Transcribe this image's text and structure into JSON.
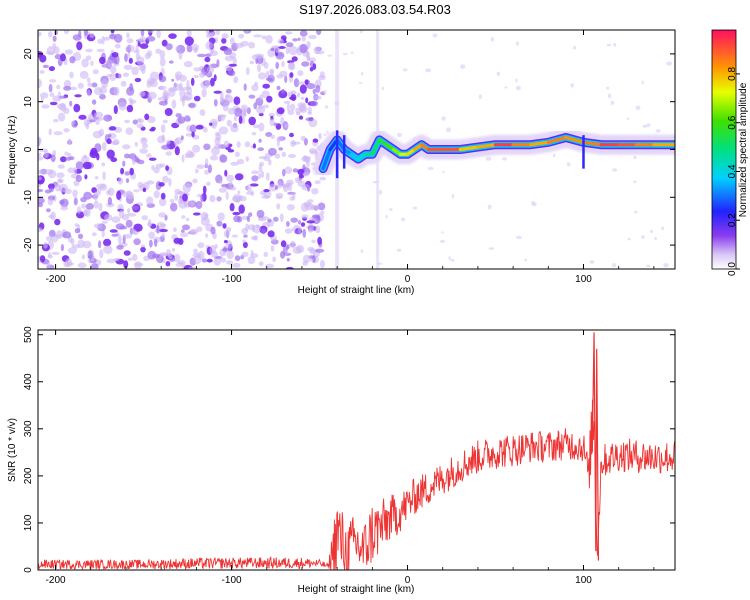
{
  "title": "S197.2026.083.03.54.R03",
  "chart_data": [
    {
      "type": "heatmap",
      "xlabel": "Height of straight line (km)",
      "ylabel": "Frequency (Hz)",
      "xlim": [
        -210,
        152
      ],
      "ylim": [
        -25,
        25
      ],
      "x_ticks": [
        -200,
        -100,
        0,
        100
      ],
      "y_ticks": [
        -20,
        -10,
        0,
        10,
        20
      ],
      "colorbar": {
        "label": "Normalized spectral amplitude",
        "range": [
          0,
          0.98
        ],
        "ticks": [
          0.0,
          0.2,
          0.4,
          0.6,
          0.8
        ]
      },
      "noise_region_x": [
        -210,
        -48
      ],
      "signal_track": {
        "x": [
          -48,
          -44,
          -40,
          -36,
          -32,
          -28,
          -24,
          -20,
          -16,
          -12,
          -8,
          -4,
          0,
          4,
          8,
          12,
          20,
          30,
          40,
          50,
          60,
          70,
          80,
          90,
          100,
          110,
          120,
          130,
          140,
          152
        ],
        "freq": [
          -4,
          0,
          2,
          0,
          -1,
          -2,
          -1,
          -1,
          2,
          1,
          0,
          -1,
          -1,
          0,
          1,
          0,
          0,
          0,
          0.5,
          1,
          1,
          1,
          1.5,
          2.5,
          1.5,
          1,
          1,
          1,
          1,
          1
        ],
        "amplitude": [
          0.4,
          0.2,
          0.3,
          0.3,
          0.35,
          0.4,
          0.45,
          0.5,
          0.55,
          0.6,
          0.65,
          0.7,
          0.75,
          0.8,
          0.85,
          0.9,
          0.95,
          0.9,
          0.7,
          0.95,
          0.95,
          0.8,
          0.85,
          0.9,
          0.8,
          0.95,
          0.95,
          0.9,
          0.85,
          0.8
        ]
      }
    },
    {
      "type": "line",
      "xlabel": "Height of straight line (km)",
      "ylabel": "SNR (10 * v/v)",
      "xlim": [
        -210,
        152
      ],
      "ylim": [
        0,
        510
      ],
      "x_ticks": [
        -200,
        -100,
        0,
        100
      ],
      "y_ticks": [
        0,
        100,
        200,
        300,
        400,
        500
      ],
      "color": "#ee3333",
      "series": [
        {
          "name": "SNR",
          "x": [
            -210,
            -180,
            -150,
            -120,
            -90,
            -60,
            -50,
            -45,
            -40,
            -35,
            -30,
            -25,
            -20,
            -15,
            -10,
            -5,
            0,
            5,
            10,
            20,
            30,
            40,
            50,
            60,
            70,
            80,
            90,
            100,
            103,
            106,
            108,
            110,
            120,
            130,
            140,
            152
          ],
          "values": [
            12,
            12,
            12,
            14,
            15,
            15,
            14,
            8,
            80,
            40,
            60,
            40,
            80,
            90,
            110,
            120,
            140,
            160,
            170,
            195,
            220,
            240,
            250,
            255,
            262,
            262,
            268,
            262,
            200,
            370,
            30,
            230,
            245,
            242,
            240,
            240
          ],
          "noise_amplitude": [
            10,
            10,
            10,
            12,
            12,
            12,
            8,
            5,
            90,
            60,
            60,
            60,
            70,
            60,
            50,
            45,
            40,
            40,
            38,
            36,
            36,
            36,
            36,
            36,
            34,
            34,
            34,
            34,
            40,
            130,
            40,
            36,
            36,
            36,
            36,
            36
          ]
        }
      ]
    }
  ]
}
